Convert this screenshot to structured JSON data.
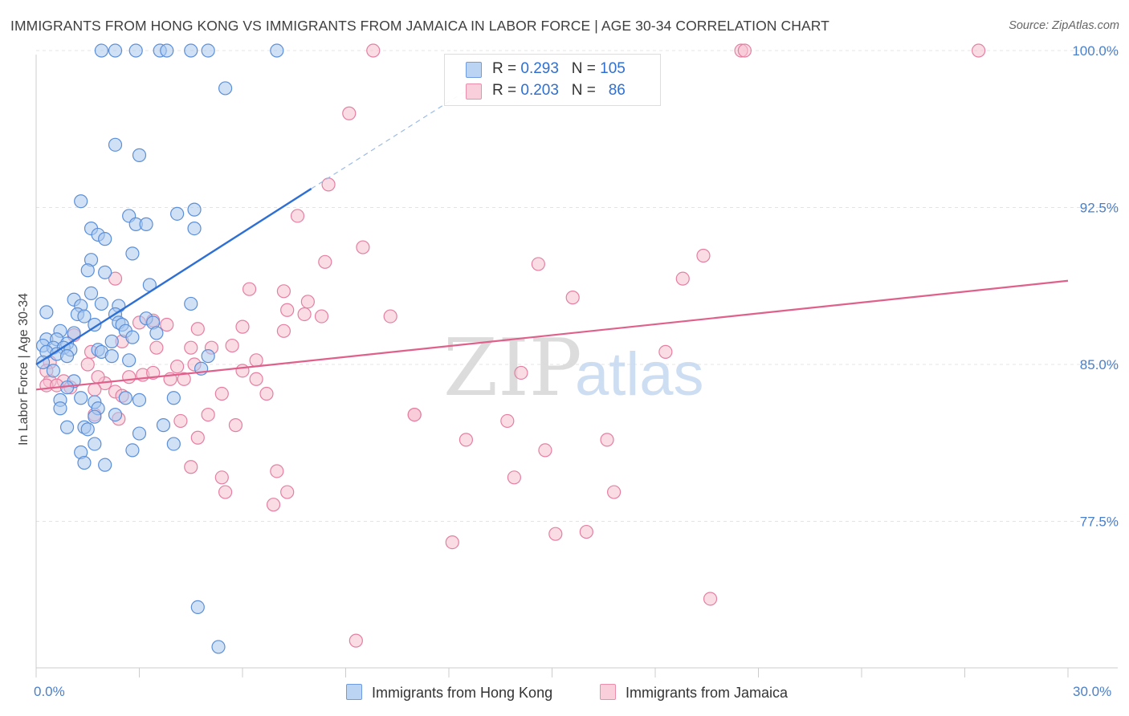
{
  "header": {
    "title": "IMMIGRANTS FROM HONG KONG VS IMMIGRANTS FROM JAMAICA IN LABOR FORCE | AGE 30-34 CORRELATION CHART",
    "source": "Source: ZipAtlas.com"
  },
  "watermark": {
    "zip": "ZIP",
    "atlas": "atlas"
  },
  "colors": {
    "blue_fill": "#aac8ef",
    "blue_stroke": "#5b8fd8",
    "blue_line": "#2e6fd4",
    "pink_fill": "#f6bfd0",
    "pink_stroke": "#e57fa2",
    "pink_line": "#e0608c",
    "axis_text": "#4a7fc9"
  },
  "legend": {
    "rows": [
      {
        "r_label": "R = ",
        "r_value": "0.293",
        "n_label": "N = ",
        "n_value": "105"
      },
      {
        "r_label": "R = ",
        "r_value": "0.203",
        "n_label": "N = ",
        "n_value": "86"
      }
    ]
  },
  "chart_data": {
    "type": "scatter",
    "title": "IMMIGRANTS FROM HONG KONG VS IMMIGRANTS FROM JAMAICA IN LABOR FORCE | AGE 30-34 CORRELATION CHART",
    "xlabel": "",
    "ylabel": "In Labor Force | Age 30-34",
    "xlim": [
      0,
      30
    ],
    "ylim": [
      70.5,
      100.5
    ],
    "x_tick_labels": [
      "0.0%",
      "30.0%"
    ],
    "y_ticks": [
      77.5,
      85.0,
      92.5,
      100.0
    ],
    "y_tick_labels": [
      "77.5%",
      "85.0%",
      "92.5%",
      "100.0%"
    ],
    "x_minor_ticks": [
      0,
      3,
      6,
      9,
      12,
      15,
      18,
      21,
      24,
      27,
      30
    ],
    "series": [
      {
        "name": "Immigrants from Hong Kong",
        "color": "blue",
        "r": 0.293,
        "n": 105,
        "trend": {
          "x0": 0.0,
          "y0": 85.0,
          "x1": 8.0,
          "y1": 93.4,
          "dash_x1": 13.0,
          "dash_y1": 98.6
        },
        "points": [
          [
            1.9,
            100
          ],
          [
            2.3,
            100
          ],
          [
            2.9,
            100
          ],
          [
            3.6,
            100
          ],
          [
            3.8,
            100
          ],
          [
            4.5,
            100
          ],
          [
            5.0,
            100
          ],
          [
            7.0,
            100
          ],
          [
            5.5,
            98.2
          ],
          [
            2.3,
            95.5
          ],
          [
            3.0,
            95.0
          ],
          [
            1.3,
            92.8
          ],
          [
            2.7,
            92.1
          ],
          [
            4.1,
            92.2
          ],
          [
            4.6,
            92.4
          ],
          [
            2.9,
            91.7
          ],
          [
            3.2,
            91.7
          ],
          [
            1.6,
            91.5
          ],
          [
            1.8,
            91.2
          ],
          [
            2.0,
            91.0
          ],
          [
            4.6,
            91.5
          ],
          [
            2.8,
            90.3
          ],
          [
            1.6,
            90.0
          ],
          [
            1.5,
            89.5
          ],
          [
            2.0,
            89.4
          ],
          [
            3.3,
            88.8
          ],
          [
            1.6,
            88.4
          ],
          [
            1.1,
            88.1
          ],
          [
            1.3,
            87.8
          ],
          [
            1.9,
            87.9
          ],
          [
            2.4,
            87.8
          ],
          [
            4.5,
            87.9
          ],
          [
            0.3,
            87.5
          ],
          [
            1.2,
            87.4
          ],
          [
            1.4,
            87.3
          ],
          [
            2.3,
            87.4
          ],
          [
            2.4,
            87.0
          ],
          [
            2.5,
            86.9
          ],
          [
            1.7,
            86.9
          ],
          [
            3.2,
            87.2
          ],
          [
            3.4,
            87.0
          ],
          [
            2.6,
            86.6
          ],
          [
            0.7,
            86.6
          ],
          [
            1.1,
            86.5
          ],
          [
            3.5,
            86.5
          ],
          [
            0.3,
            86.2
          ],
          [
            0.6,
            86.2
          ],
          [
            0.9,
            86.0
          ],
          [
            2.2,
            86.1
          ],
          [
            2.8,
            86.3
          ],
          [
            0.2,
            85.9
          ],
          [
            0.5,
            85.8
          ],
          [
            0.8,
            85.8
          ],
          [
            1.0,
            85.7
          ],
          [
            1.8,
            85.7
          ],
          [
            1.9,
            85.6
          ],
          [
            0.3,
            85.6
          ],
          [
            0.6,
            85.5
          ],
          [
            0.9,
            85.4
          ],
          [
            0.2,
            85.1
          ],
          [
            0.5,
            84.7
          ],
          [
            2.2,
            85.4
          ],
          [
            2.7,
            85.2
          ],
          [
            4.8,
            84.8
          ],
          [
            5.0,
            85.4
          ],
          [
            1.1,
            84.2
          ],
          [
            0.9,
            83.9
          ],
          [
            1.3,
            83.4
          ],
          [
            1.7,
            83.2
          ],
          [
            0.7,
            83.3
          ],
          [
            0.7,
            82.9
          ],
          [
            1.8,
            82.9
          ],
          [
            2.6,
            83.4
          ],
          [
            3.0,
            83.3
          ],
          [
            4.0,
            83.4
          ],
          [
            2.3,
            82.6
          ],
          [
            1.7,
            82.5
          ],
          [
            0.9,
            82.0
          ],
          [
            1.4,
            82.0
          ],
          [
            1.5,
            81.9
          ],
          [
            3.0,
            81.7
          ],
          [
            3.7,
            82.1
          ],
          [
            1.7,
            81.2
          ],
          [
            2.8,
            80.9
          ],
          [
            4.0,
            81.2
          ],
          [
            1.3,
            80.8
          ],
          [
            1.4,
            80.3
          ],
          [
            2.0,
            80.2
          ],
          [
            4.7,
            73.4
          ],
          [
            5.3,
            71.5
          ]
        ]
      },
      {
        "name": "Immigrants from Jamaica",
        "color": "pink",
        "r": 0.203,
        "n": 86,
        "trend": {
          "x0": 0.0,
          "y0": 83.8,
          "x1": 30.0,
          "y1": 89.0
        },
        "points": [
          [
            9.8,
            100
          ],
          [
            20.5,
            100
          ],
          [
            20.6,
            100
          ],
          [
            27.4,
            100
          ],
          [
            9.1,
            97.0
          ],
          [
            8.5,
            93.6
          ],
          [
            7.6,
            92.1
          ],
          [
            9.5,
            90.6
          ],
          [
            8.4,
            89.9
          ],
          [
            14.6,
            89.8
          ],
          [
            19.4,
            90.2
          ],
          [
            2.3,
            89.1
          ],
          [
            18.8,
            89.1
          ],
          [
            6.2,
            88.6
          ],
          [
            7.2,
            88.5
          ],
          [
            15.6,
            88.2
          ],
          [
            7.9,
            88.0
          ],
          [
            7.3,
            87.6
          ],
          [
            7.8,
            87.4
          ],
          [
            8.3,
            87.3
          ],
          [
            10.3,
            87.3
          ],
          [
            3.0,
            87.0
          ],
          [
            3.4,
            87.1
          ],
          [
            4.7,
            86.7
          ],
          [
            6.0,
            86.8
          ],
          [
            3.8,
            86.9
          ],
          [
            7.2,
            86.6
          ],
          [
            1.1,
            86.4
          ],
          [
            5.1,
            85.8
          ],
          [
            5.7,
            85.9
          ],
          [
            2.5,
            86.1
          ],
          [
            3.5,
            85.8
          ],
          [
            1.6,
            85.6
          ],
          [
            4.5,
            85.8
          ],
          [
            6.4,
            85.2
          ],
          [
            18.3,
            85.6
          ],
          [
            0.4,
            85.1
          ],
          [
            1.5,
            85.0
          ],
          [
            4.1,
            84.9
          ],
          [
            4.6,
            85.0
          ],
          [
            6.0,
            84.7
          ],
          [
            14.1,
            84.6
          ],
          [
            0.4,
            84.2
          ],
          [
            0.8,
            84.2
          ],
          [
            2.0,
            84.1
          ],
          [
            2.7,
            84.4
          ],
          [
            3.1,
            84.5
          ],
          [
            3.4,
            84.6
          ],
          [
            3.9,
            84.3
          ],
          [
            0.3,
            84.0
          ],
          [
            0.6,
            84.0
          ],
          [
            1.0,
            83.9
          ],
          [
            1.7,
            83.8
          ],
          [
            2.3,
            83.7
          ],
          [
            4.3,
            84.3
          ],
          [
            5.4,
            83.6
          ],
          [
            6.7,
            83.6
          ],
          [
            1.7,
            82.6
          ],
          [
            2.4,
            82.4
          ],
          [
            4.2,
            82.3
          ],
          [
            5.0,
            82.6
          ],
          [
            5.8,
            82.1
          ],
          [
            11.0,
            82.6
          ],
          [
            11.0,
            82.6
          ],
          [
            12.5,
            81.4
          ],
          [
            13.7,
            82.3
          ],
          [
            16.6,
            81.4
          ],
          [
            4.7,
            81.5
          ],
          [
            4.5,
            80.1
          ],
          [
            7.0,
            79.9
          ],
          [
            5.4,
            79.6
          ],
          [
            13.9,
            79.6
          ],
          [
            7.3,
            78.9
          ],
          [
            5.5,
            78.9
          ],
          [
            16.8,
            78.9
          ],
          [
            14.8,
            80.9
          ],
          [
            6.9,
            78.3
          ],
          [
            12.1,
            76.5
          ],
          [
            15.1,
            76.9
          ],
          [
            16.0,
            77.0
          ],
          [
            19.6,
            73.8
          ],
          [
            9.3,
            71.8
          ],
          [
            0.3,
            84.7
          ],
          [
            1.8,
            84.4
          ],
          [
            2.5,
            83.5
          ],
          [
            6.4,
            84.3
          ]
        ]
      }
    ],
    "legend_position": "top-center"
  }
}
